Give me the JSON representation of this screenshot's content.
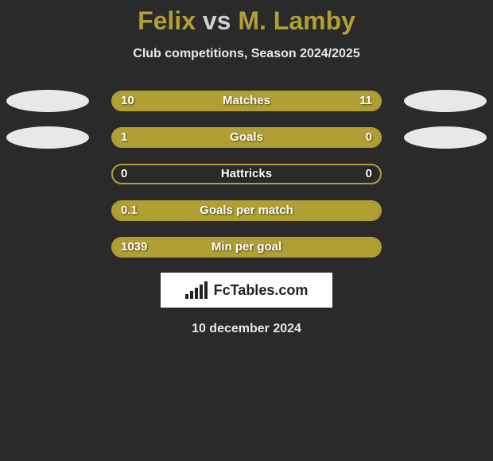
{
  "title": {
    "player1": "Felix",
    "vs": "vs",
    "player2": "M. Lamby"
  },
  "subtitle": "Club competitions, Season 2024/2025",
  "colors": {
    "player1_fill": "#b0a033",
    "player2_fill": "#b0a033",
    "bar_border": "#b0a033",
    "oval": "#e8e8e8",
    "title_p1": "#b0a033",
    "title_vs": "#d0d0d0",
    "title_p2": "#b0a033",
    "background": "#2a2a2a"
  },
  "stats": [
    {
      "label": "Matches",
      "left_value": "10",
      "right_value": "11",
      "left_width_pct": 47.6,
      "right_width_pct": 52.4,
      "show_ovals": true
    },
    {
      "label": "Goals",
      "left_value": "1",
      "right_value": "0",
      "left_width_pct": 78,
      "right_width_pct": 22,
      "show_ovals": true
    },
    {
      "label": "Hattricks",
      "left_value": "0",
      "right_value": "0",
      "left_width_pct": 0,
      "right_width_pct": 0,
      "show_ovals": false
    },
    {
      "label": "Goals per match",
      "left_value": "0.1",
      "right_value": "",
      "left_width_pct": 100,
      "right_width_pct": 0,
      "show_ovals": false
    },
    {
      "label": "Min per goal",
      "left_value": "1039",
      "right_value": "",
      "left_width_pct": 100,
      "right_width_pct": 0,
      "show_ovals": false
    }
  ],
  "logo_text": "FcTables.com",
  "date": "10 december 2024"
}
